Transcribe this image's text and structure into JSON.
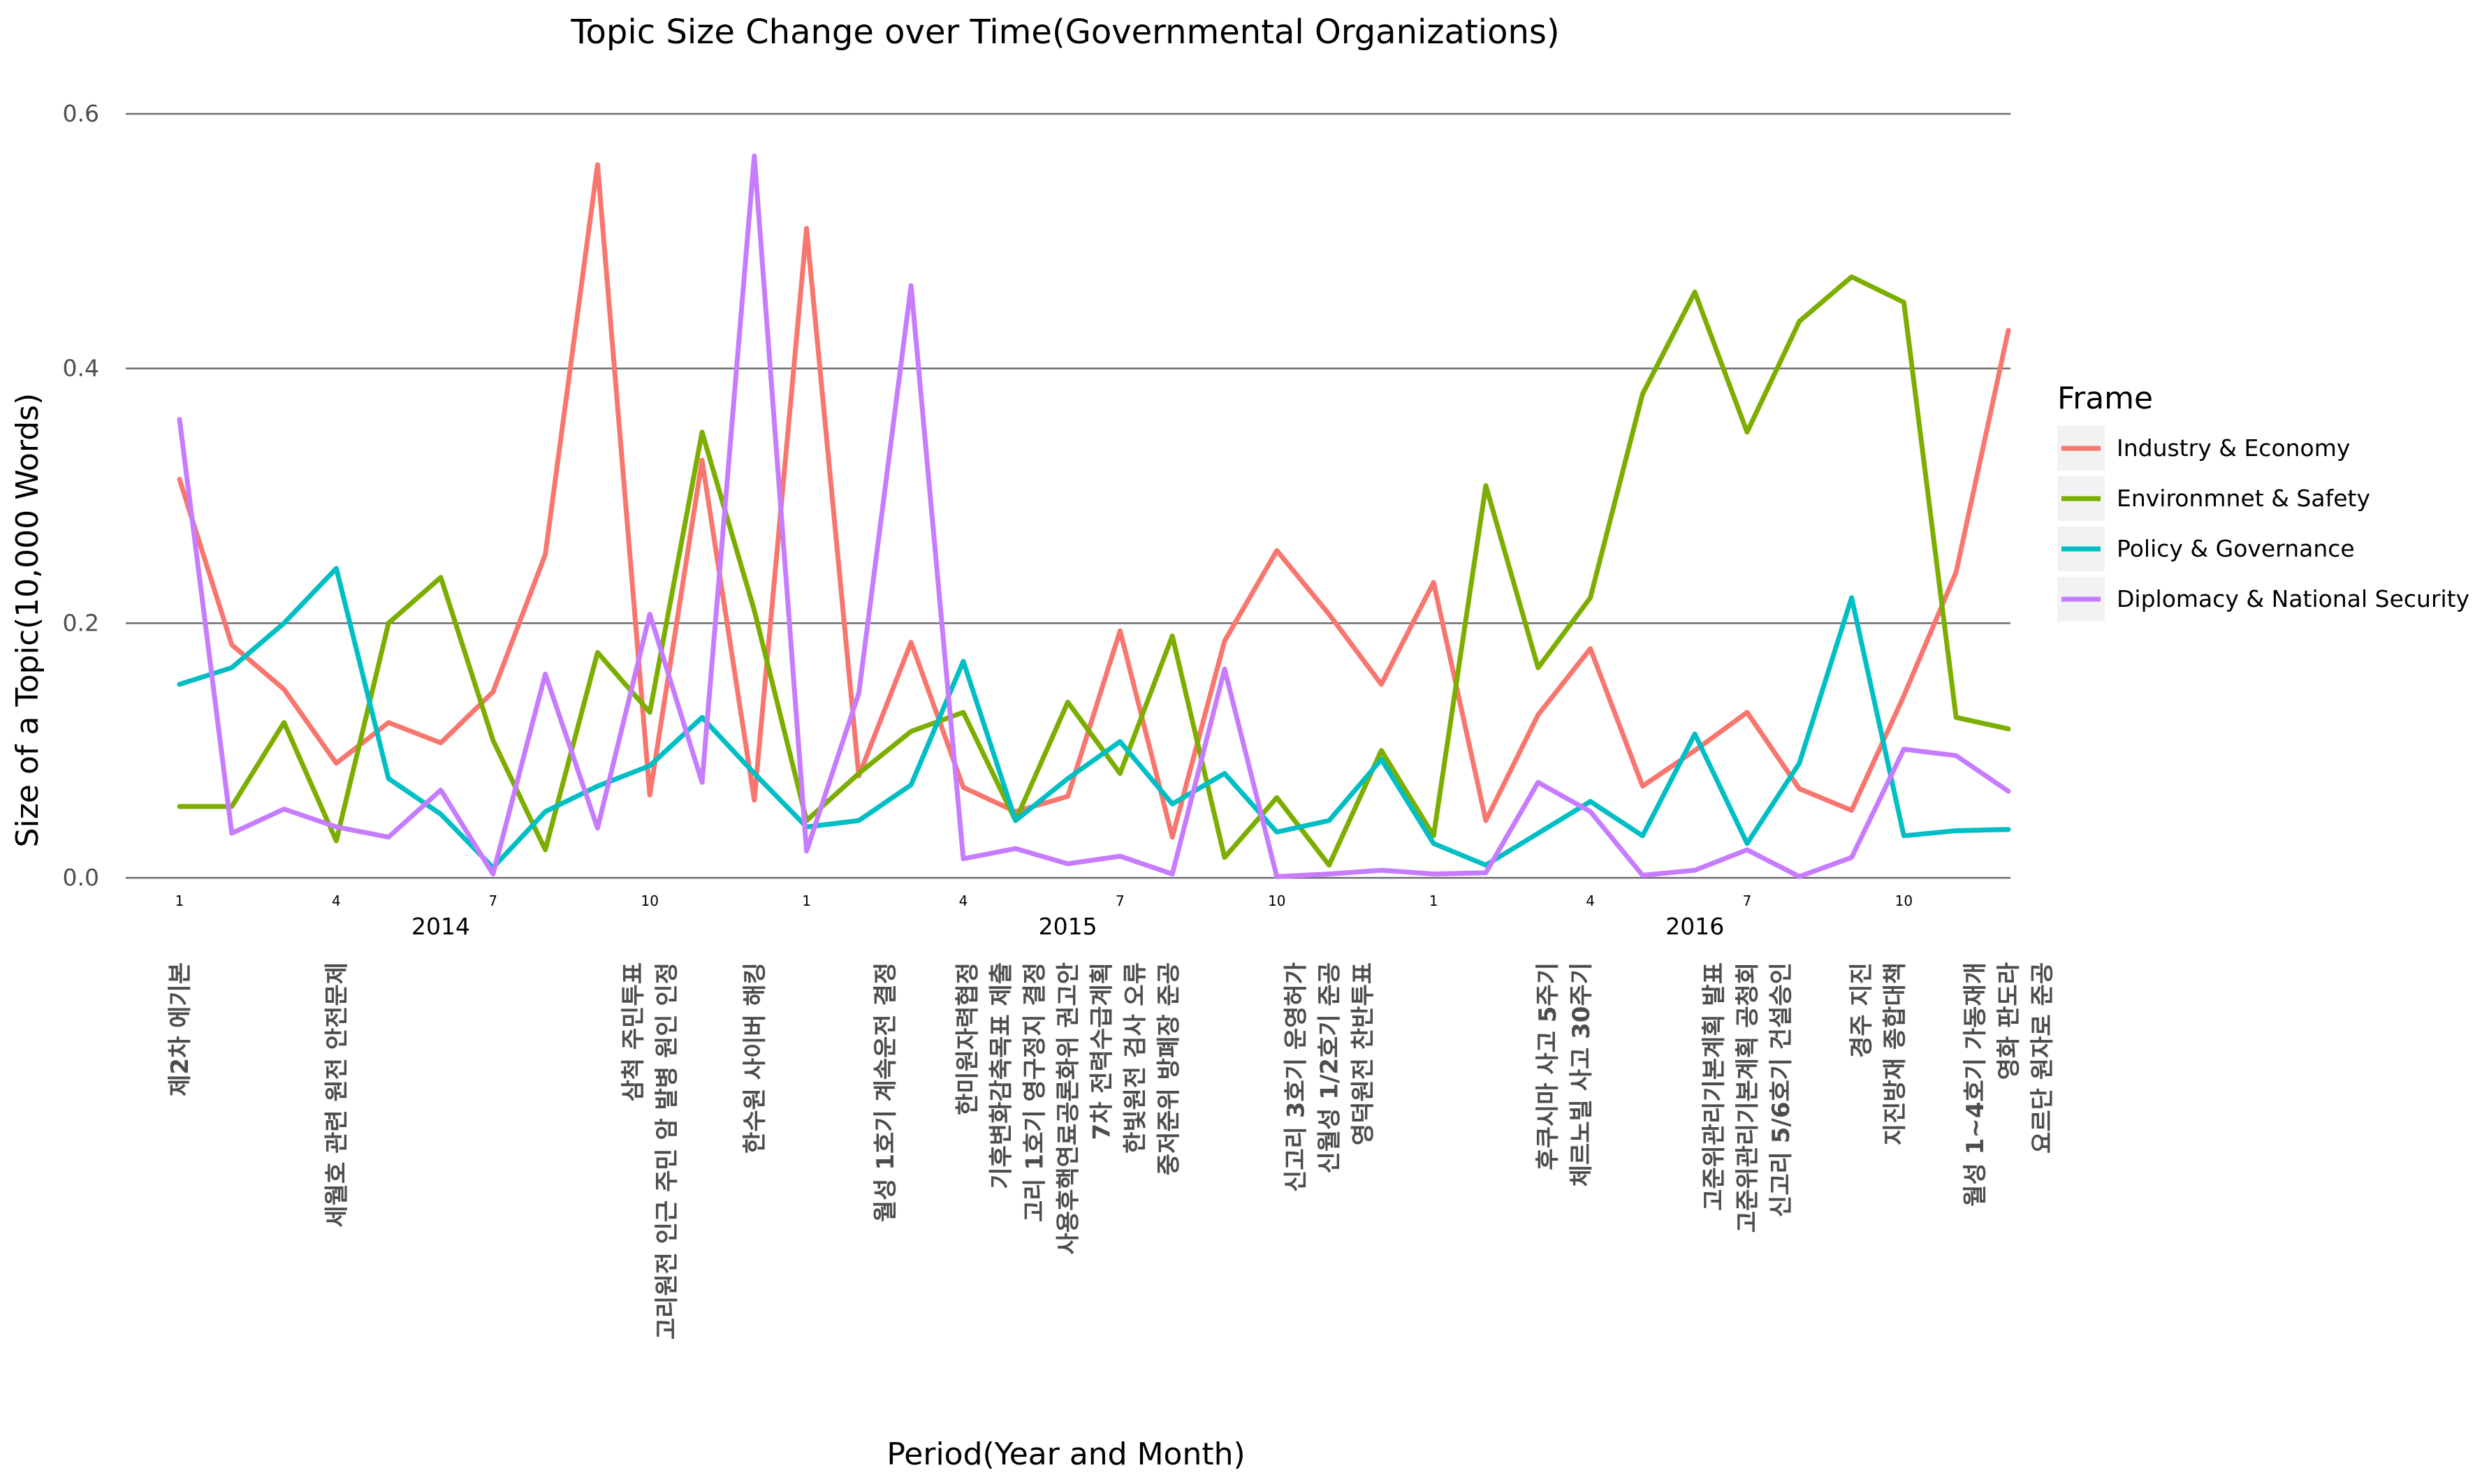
{
  "chart_data": {
    "type": "line",
    "title": "Topic Size Change over Time(Governmental Organizations)",
    "xlabel": "Period(Year and Month)",
    "ylabel": "Size of a Topic(10,000 Words)",
    "ylim": [
      0,
      0.6
    ],
    "yticks": [
      "0.0",
      "0.2",
      "0.4",
      "0.6"
    ],
    "xlim": [
      1,
      36
    ],
    "x": [
      1,
      2,
      3,
      4,
      5,
      6,
      7,
      8,
      9,
      10,
      11,
      12,
      13,
      14,
      15,
      16,
      17,
      18,
      19,
      20,
      21,
      22,
      23,
      24,
      25,
      26,
      27,
      28,
      29,
      30,
      31,
      32,
      33,
      34,
      35,
      36
    ],
    "xticks": [
      {
        "x": 1,
        "label": "1"
      },
      {
        "x": 4,
        "label": "4"
      },
      {
        "x": 7,
        "label": "7"
      },
      {
        "x": 10,
        "label": "10"
      },
      {
        "x": 13,
        "label": "1"
      },
      {
        "x": 16,
        "label": "4"
      },
      {
        "x": 19,
        "label": "7"
      },
      {
        "x": 22,
        "label": "10"
      },
      {
        "x": 25,
        "label": "1"
      },
      {
        "x": 28,
        "label": "4"
      },
      {
        "x": 31,
        "label": "7"
      },
      {
        "x": 34,
        "label": "10"
      }
    ],
    "years": [
      {
        "x": 6,
        "label": "2014"
      },
      {
        "x": 18,
        "label": "2015"
      },
      {
        "x": 30,
        "label": "2016"
      }
    ],
    "grid": "horizontal",
    "legend": {
      "title": "Frame",
      "position": "right"
    },
    "series": [
      {
        "name": "Industry & Economy",
        "color": "#F8766D",
        "values": [
          0.313,
          0.183,
          0.148,
          0.09,
          0.122,
          0.106,
          0.146,
          0.254,
          0.56,
          0.065,
          0.328,
          0.061,
          0.51,
          0.08,
          0.185,
          0.071,
          0.052,
          0.064,
          0.194,
          0.032,
          0.186,
          0.257,
          0.207,
          0.152,
          0.232,
          0.045,
          0.128,
          0.18,
          0.072,
          0.1,
          0.13,
          0.07,
          0.053,
          0.143,
          0.24,
          0.43
        ]
      },
      {
        "name": "Environmnet & Safety",
        "color": "#7CAE00",
        "values": [
          0.056,
          0.056,
          0.122,
          0.029,
          0.2,
          0.236,
          0.108,
          0.022,
          0.177,
          0.13,
          0.35,
          0.21,
          0.045,
          0.082,
          0.115,
          0.13,
          0.045,
          0.138,
          0.082,
          0.19,
          0.016,
          0.063,
          0.01,
          0.1,
          0.033,
          0.308,
          0.165,
          0.22,
          0.38,
          0.46,
          0.35,
          0.437,
          0.472,
          0.452,
          0.126,
          0.117
        ]
      },
      {
        "name": "Policy & Governance",
        "color": "#00BFC4",
        "values": [
          0.152,
          0.165,
          0.2,
          0.243,
          0.078,
          0.05,
          0.008,
          0.052,
          0.072,
          0.088,
          0.126,
          0.082,
          0.04,
          0.045,
          0.073,
          0.17,
          0.045,
          0.078,
          0.107,
          0.058,
          0.082,
          0.036,
          0.045,
          0.093,
          0.027,
          0.01,
          0.035,
          0.06,
          0.033,
          0.113,
          0.027,
          0.09,
          0.22,
          0.033,
          0.037,
          0.038
        ]
      },
      {
        "name": "Diplomacy & National Security",
        "color": "#C77CFF",
        "values": [
          0.36,
          0.035,
          0.054,
          0.04,
          0.032,
          0.069,
          0.003,
          0.16,
          0.039,
          0.207,
          0.075,
          0.567,
          0.021,
          0.145,
          0.465,
          0.015,
          0.023,
          0.011,
          0.017,
          0.003,
          0.164,
          0.001,
          0.003,
          0.006,
          0.003,
          0.004,
          0.075,
          0.052,
          0.002,
          0.006,
          0.022,
          0.001,
          0.016,
          0.101,
          0.096,
          0.068
        ]
      }
    ],
    "events": [
      {
        "x": 1,
        "lines": [
          "제2차 에기본"
        ]
      },
      {
        "x": 4,
        "lines": [
          "세월호 관련 원전 안전문제"
        ]
      },
      {
        "x": 10,
        "lines": [
          "삼척 주민투표",
          "고리원전 인근 주민 암 발병 원인 인정"
        ]
      },
      {
        "x": 12,
        "lines": [
          "한수원 사이버 해킹"
        ]
      },
      {
        "x": 14.5,
        "lines": [
          "월성 1호기 계속운전 결정"
        ]
      },
      {
        "x": 18,
        "lines": [
          "한미원자력협정",
          "기후변화감축목표 제출",
          "고리 1호기 영구정지 결정",
          "사용후핵연료공론화위 권고안",
          "7차 전력수급계획",
          "한빛원전 검사 오류",
          "중저준위 방폐장 준공"
        ]
      },
      {
        "x": 23,
        "lines": [
          "신고리 3호기 운영허가",
          "신월성 1/2호기 준공",
          "영덕원전 찬반투표"
        ]
      },
      {
        "x": 27.5,
        "lines": [
          "후쿠시마 사고 5주기",
          "체르노빌 사고 30주기"
        ]
      },
      {
        "x": 31,
        "lines": [
          "고준위관리기본계획 발표",
          "고준위관리기본계획 공청회",
          "신고리 5/6호기 건설승인"
        ]
      },
      {
        "x": 33.5,
        "lines": [
          "경주 지진",
          "지진방재 종합대책"
        ]
      },
      {
        "x": 36,
        "lines": [
          "월성 1~4호기 가동재개",
          "영화 판도라",
          "요르단 원자로 준공"
        ]
      }
    ]
  }
}
